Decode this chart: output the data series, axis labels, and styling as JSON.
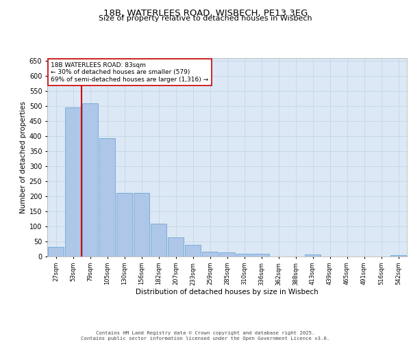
{
  "title_line1": "18B, WATERLEES ROAD, WISBECH, PE13 3EG",
  "title_line2": "Size of property relative to detached houses in Wisbech",
  "xlabel": "Distribution of detached houses by size in Wisbech",
  "ylabel": "Number of detached properties",
  "categories": [
    "27sqm",
    "53sqm",
    "79sqm",
    "105sqm",
    "130sqm",
    "156sqm",
    "182sqm",
    "207sqm",
    "233sqm",
    "259sqm",
    "285sqm",
    "310sqm",
    "336sqm",
    "362sqm",
    "388sqm",
    "413sqm",
    "439sqm",
    "465sqm",
    "491sqm",
    "516sqm",
    "542sqm"
  ],
  "values": [
    32,
    497,
    510,
    393,
    212,
    212,
    110,
    63,
    38,
    17,
    14,
    9,
    9,
    0,
    0,
    7,
    1,
    0,
    0,
    0,
    5
  ],
  "bar_color": "#aec6e8",
  "bar_edge_color": "#5a9fd4",
  "vline_color": "#cc0000",
  "annotation_text": "18B WATERLEES ROAD: 83sqm\n← 30% of detached houses are smaller (579)\n69% of semi-detached houses are larger (1,316) →",
  "annotation_box_color": "#ffffff",
  "annotation_box_edge": "#cc0000",
  "grid_color": "#c8d8e8",
  "background_color": "#dce8f5",
  "footer_line1": "Contains HM Land Registry data © Crown copyright and database right 2025.",
  "footer_line2": "Contains public sector information licensed under the Open Government Licence v3.0.",
  "ylim": [
    0,
    660
  ],
  "yticks": [
    0,
    50,
    100,
    150,
    200,
    250,
    300,
    350,
    400,
    450,
    500,
    550,
    600,
    650
  ]
}
